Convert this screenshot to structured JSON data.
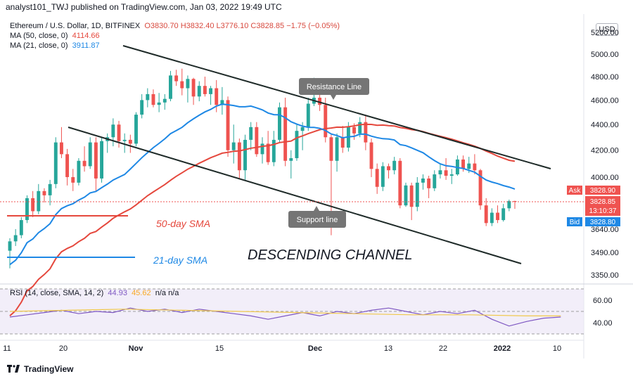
{
  "header": {
    "text": "analyst101_TWJ published on TradingView.com, Jan 03, 2022 19:49 UTC"
  },
  "legend": {
    "symbol": "Ethereum / U.S. Dollar, 1D, BITFINEX",
    "ohlc": "O3830.70  H3832.40  L3776.10  C3828.85  −1.75 (−0.05%)",
    "ma50_label": "MA (50, close, 0)",
    "ma50_value": "4114.66",
    "ma21_label": "MA (21, close, 0)",
    "ma21_value": "3911.87"
  },
  "rsi_legend": {
    "label": "RSI (14, close, SMA, 14, 2)",
    "value": "44.93",
    "value2": "45.62",
    "na": "n/a  n/a"
  },
  "currency": "USD",
  "footer": {
    "brand": "TradingView"
  },
  "annotations": {
    "resistance": "Resistance Line",
    "support": "Support line",
    "sma50": "50-day SMA",
    "sma21": "21-day SMA",
    "channel": "DESCENDING CHANNEL"
  },
  "price_tags": {
    "ask_label": "Ask",
    "ask": "3828.90",
    "last": "3828.85",
    "countdown": "13:10:37",
    "bid_label": "Bid",
    "bid": "3828.80"
  },
  "colors": {
    "up": "#26a69a",
    "down": "#ef5350",
    "ma50": "#e5483d",
    "ma21": "#1e88e5",
    "rsi": "#7e57c2",
    "rsi_sma": "#f9d96b",
    "channel": "#1e2a28"
  },
  "chart_data": {
    "type": "candlestick",
    "price_axis": {
      "ticks": [
        "5200.00",
        "5000.00",
        "4800.00",
        "4600.00",
        "4400.00",
        "4200.00",
        "4000.00",
        "3640.00",
        "3490.00",
        "3350.00"
      ],
      "log": true
    },
    "rsi_axis": {
      "ticks": [
        "60.00",
        "40.00"
      ],
      "bands": [
        30,
        70
      ]
    },
    "x_ticks": [
      "11",
      "20",
      "Nov",
      "15",
      "Dec",
      "13",
      "22",
      "2022",
      "10"
    ],
    "candles": [
      [
        3500,
        3580,
        3390,
        3560
      ],
      [
        3560,
        3640,
        3530,
        3600
      ],
      [
        3600,
        3720,
        3580,
        3700
      ],
      [
        3700,
        3870,
        3680,
        3850
      ],
      [
        3850,
        3900,
        3720,
        3760
      ],
      [
        3760,
        3950,
        3740,
        3900
      ],
      [
        3900,
        3920,
        3820,
        3870
      ],
      [
        3870,
        3980,
        3800,
        3950
      ],
      [
        3950,
        4300,
        3920,
        4260
      ],
      [
        4260,
        4380,
        4140,
        4170
      ],
      [
        4170,
        4210,
        3940,
        4000
      ],
      [
        4000,
        4060,
        3900,
        3960
      ],
      [
        3960,
        4140,
        3940,
        4120
      ],
      [
        4120,
        4230,
        4040,
        4080
      ],
      [
        4080,
        4300,
        4060,
        4260
      ],
      [
        4260,
        4300,
        3900,
        3990
      ],
      [
        3990,
        4300,
        3960,
        4270
      ],
      [
        4270,
        4330,
        4180,
        4300
      ],
      [
        4300,
        4450,
        4230,
        4400
      ],
      [
        4400,
        4430,
        4220,
        4270
      ],
      [
        4270,
        4330,
        4180,
        4280
      ],
      [
        4280,
        4320,
        4180,
        4250
      ],
      [
        4250,
        4500,
        4230,
        4480
      ],
      [
        4480,
        4650,
        4450,
        4600
      ],
      [
        4600,
        4700,
        4540,
        4650
      ],
      [
        4650,
        4690,
        4540,
        4560
      ],
      [
        4560,
        4660,
        4500,
        4580
      ],
      [
        4580,
        4650,
        4520,
        4610
      ],
      [
        4610,
        4850,
        4590,
        4810
      ],
      [
        4810,
        4860,
        4720,
        4760
      ],
      [
        4760,
        4870,
        4640,
        4700
      ],
      [
        4700,
        4810,
        4580,
        4780
      ],
      [
        4780,
        4790,
        4560,
        4630
      ],
      [
        4630,
        4760,
        4590,
        4720
      ],
      [
        4720,
        4800,
        4630,
        4650
      ],
      [
        4650,
        4720,
        4560,
        4700
      ],
      [
        4700,
        4770,
        4500,
        4560
      ],
      [
        4560,
        4710,
        4480,
        4600
      ],
      [
        4600,
        4630,
        4150,
        4200
      ],
      [
        4200,
        4400,
        4100,
        4260
      ],
      [
        4260,
        4290,
        3990,
        4050
      ],
      [
        4050,
        4320,
        3980,
        4280
      ],
      [
        4280,
        4420,
        4200,
        4380
      ],
      [
        4380,
        4420,
        4150,
        4170
      ],
      [
        4170,
        4300,
        4100,
        4250
      ],
      [
        4250,
        4350,
        4090,
        4110
      ],
      [
        4110,
        4350,
        4080,
        4280
      ],
      [
        4280,
        4580,
        4260,
        4540
      ],
      [
        4540,
        4620,
        4080,
        4120
      ],
      [
        4120,
        4200,
        3990,
        4140
      ],
      [
        4140,
        4400,
        4120,
        4350
      ],
      [
        4350,
        4420,
        4200,
        4380
      ],
      [
        4380,
        4620,
        4350,
        4570
      ],
      [
        4570,
        4790,
        4550,
        4620
      ],
      [
        4620,
        4650,
        4510,
        4560
      ],
      [
        4560,
        4620,
        4260,
        4300
      ],
      [
        4300,
        4320,
        3600,
        4120
      ],
      [
        4120,
        4330,
        4040,
        4300
      ],
      [
        4300,
        4390,
        4180,
        4220
      ],
      [
        4220,
        4420,
        4190,
        4380
      ],
      [
        4380,
        4410,
        4280,
        4330
      ],
      [
        4330,
        4460,
        4300,
        4420
      ],
      [
        4420,
        4480,
        4200,
        4260
      ],
      [
        4260,
        4290,
        4000,
        4060
      ],
      [
        4060,
        4100,
        3880,
        3930
      ],
      [
        3930,
        4110,
        3900,
        4080
      ],
      [
        4080,
        4100,
        3990,
        4050
      ],
      [
        4050,
        4150,
        4020,
        4120
      ],
      [
        4120,
        4140,
        3780,
        3800
      ],
      [
        3800,
        3960,
        3790,
        3940
      ],
      [
        3940,
        3960,
        3700,
        3790
      ],
      [
        3790,
        4000,
        3760,
        3960
      ],
      [
        3960,
        4020,
        3910,
        3990
      ],
      [
        3990,
        4010,
        3850,
        3920
      ],
      [
        3920,
        4050,
        3900,
        4020
      ],
      [
        4020,
        4100,
        3990,
        4050
      ],
      [
        4050,
        4140,
        3980,
        4010
      ],
      [
        4010,
        4060,
        3950,
        4020
      ],
      [
        4020,
        4160,
        4010,
        4130
      ],
      [
        4130,
        4160,
        4040,
        4060
      ],
      [
        4060,
        4150,
        4030,
        4100
      ],
      [
        4100,
        4170,
        4020,
        4050
      ],
      [
        4050,
        4060,
        3770,
        3800
      ],
      [
        3800,
        3850,
        3660,
        3680
      ],
      [
        3680,
        3780,
        3660,
        3750
      ],
      [
        3750,
        3800,
        3680,
        3700
      ],
      [
        3700,
        3810,
        3690,
        3780
      ],
      [
        3780,
        3840,
        3760,
        3830
      ],
      [
        3830,
        3832,
        3776,
        3829
      ]
    ],
    "rsi": [
      [
        0,
        45
      ],
      [
        3,
        47
      ],
      [
        6,
        49
      ],
      [
        9,
        51
      ],
      [
        12,
        48
      ],
      [
        15,
        50
      ],
      [
        18,
        49
      ],
      [
        21,
        53
      ],
      [
        24,
        50
      ],
      [
        27,
        52
      ],
      [
        30,
        49
      ],
      [
        33,
        52
      ],
      [
        36,
        50
      ],
      [
        39,
        48
      ],
      [
        42,
        46
      ],
      [
        45,
        43
      ],
      [
        48,
        46
      ],
      [
        51,
        49
      ],
      [
        54,
        46
      ],
      [
        57,
        50
      ],
      [
        60,
        48
      ],
      [
        63,
        51
      ],
      [
        66,
        53
      ],
      [
        69,
        50
      ],
      [
        72,
        47
      ],
      [
        75,
        50
      ],
      [
        78,
        48
      ],
      [
        81,
        51
      ],
      [
        84,
        43
      ],
      [
        87,
        37
      ],
      [
        90,
        41
      ],
      [
        93,
        44
      ],
      [
        96,
        45
      ]
    ],
    "rsi_sma": [
      [
        0,
        50
      ],
      [
        10,
        51
      ],
      [
        20,
        52
      ],
      [
        30,
        51
      ],
      [
        40,
        50
      ],
      [
        50,
        49
      ],
      [
        60,
        48
      ],
      [
        70,
        47
      ],
      [
        80,
        47
      ],
      [
        90,
        46
      ],
      [
        96,
        46
      ]
    ]
  }
}
